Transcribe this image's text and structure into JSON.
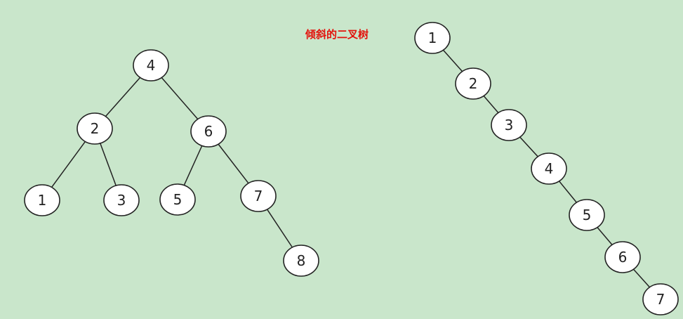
{
  "title": "倾斜的二叉树",
  "balanced_tree": {
    "nodes": [
      "4",
      "2",
      "6",
      "1",
      "3",
      "5",
      "7",
      "8"
    ],
    "edges": [
      [
        "4",
        "2"
      ],
      [
        "4",
        "6"
      ],
      [
        "2",
        "1"
      ],
      [
        "2",
        "3"
      ],
      [
        "6",
        "5"
      ],
      [
        "6",
        "7"
      ],
      [
        "7",
        "8"
      ]
    ]
  },
  "skewed_tree": {
    "nodes": [
      "1",
      "2",
      "3",
      "4",
      "5",
      "6",
      "7"
    ],
    "edges": [
      [
        "1",
        "2"
      ],
      [
        "2",
        "3"
      ],
      [
        "3",
        "4"
      ],
      [
        "4",
        "5"
      ],
      [
        "5",
        "6"
      ],
      [
        "6",
        "7"
      ]
    ]
  }
}
